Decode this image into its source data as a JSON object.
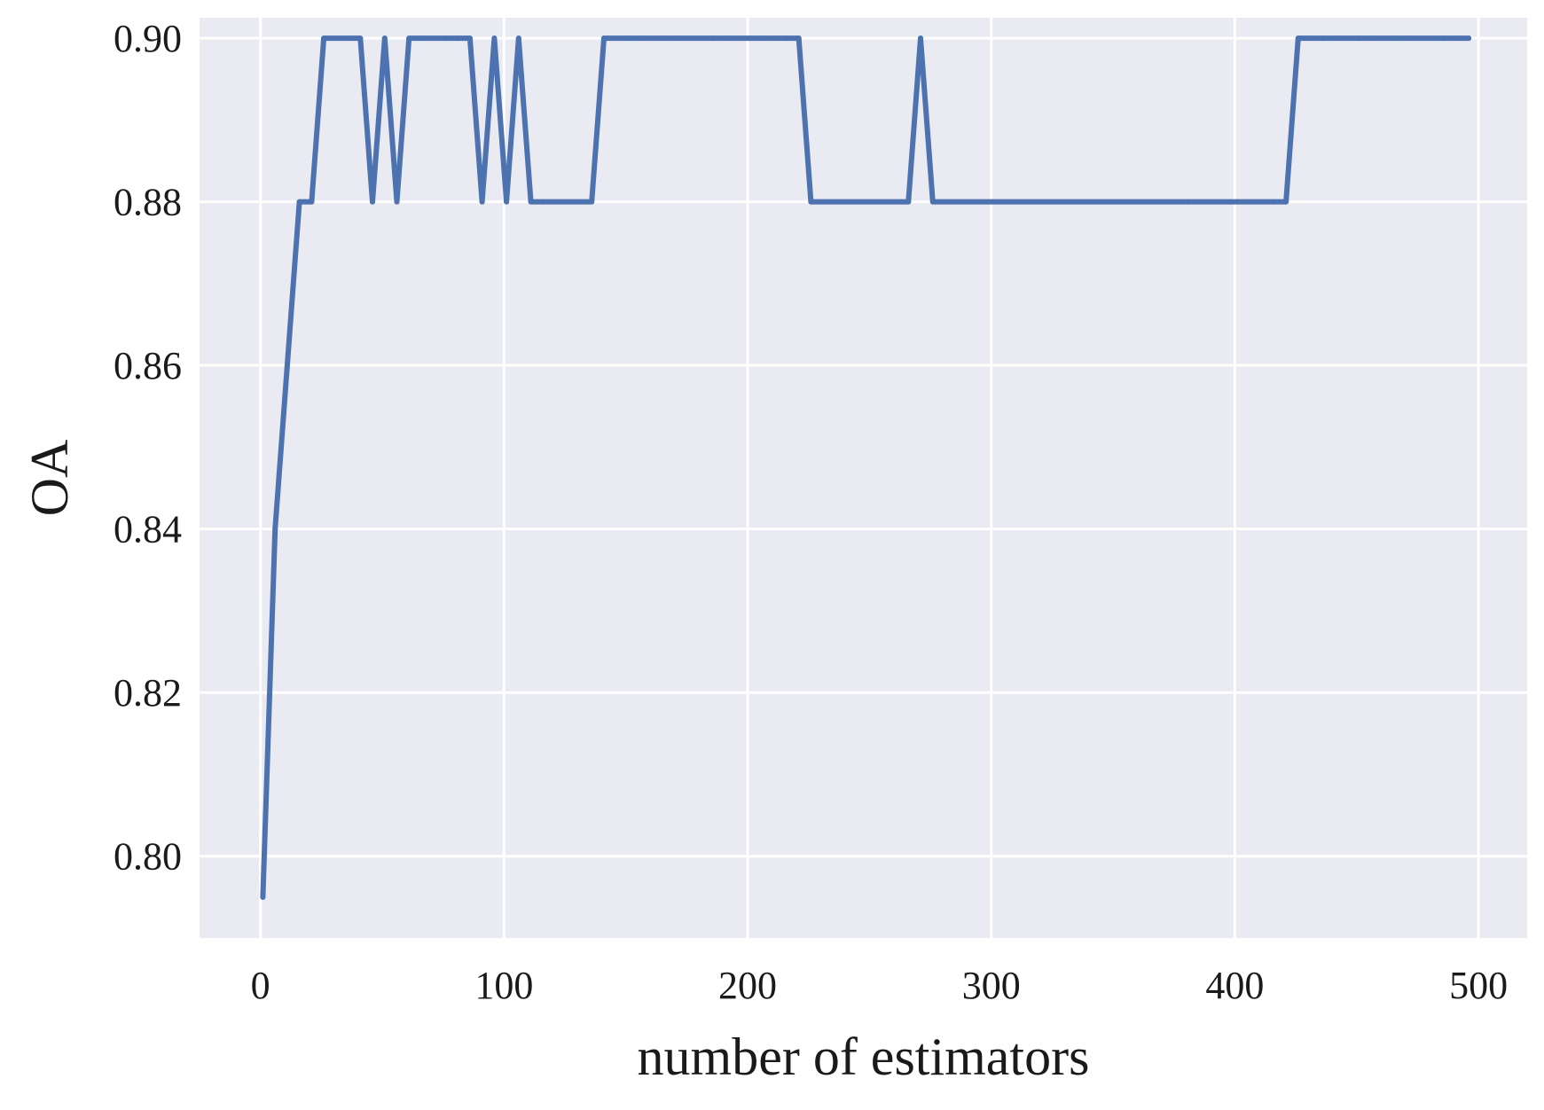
{
  "chart_data": {
    "type": "line",
    "title": "",
    "xlabel": "number of estimators",
    "ylabel": "OA",
    "xlim": [
      -25,
      520
    ],
    "ylim": [
      0.79,
      0.9025
    ],
    "xticks": [
      0,
      100,
      200,
      300,
      400,
      500
    ],
    "xtick_labels": [
      "0",
      "100",
      "200",
      "300",
      "400",
      "500"
    ],
    "yticks": [
      0.8,
      0.82,
      0.84,
      0.86,
      0.88,
      0.9
    ],
    "ytick_labels": [
      "0.80",
      "0.82",
      "0.84",
      "0.86",
      "0.88",
      "0.90"
    ],
    "grid": true,
    "colors": {
      "plot_background": "#eaeaf2",
      "grid": "#ffffff",
      "line": "#4c72b0"
    },
    "series": [
      {
        "x": [
          1,
          6,
          11,
          16,
          21,
          26,
          31,
          36,
          41,
          46,
          51,
          56,
          61,
          66,
          71,
          76,
          81,
          86,
          91,
          96,
          101,
          106,
          111,
          116,
          121,
          126,
          131,
          136,
          141,
          146,
          151,
          156,
          161,
          166,
          171,
          176,
          181,
          186,
          191,
          196,
          201,
          206,
          211,
          216,
          221,
          226,
          231,
          236,
          241,
          246,
          251,
          256,
          261,
          266,
          271,
          276,
          281,
          286,
          291,
          296,
          301,
          306,
          311,
          316,
          321,
          326,
          331,
          336,
          341,
          346,
          351,
          356,
          361,
          366,
          371,
          376,
          381,
          386,
          391,
          396,
          401,
          406,
          411,
          416,
          421,
          426,
          431,
          436,
          441,
          446,
          451,
          456,
          461,
          466,
          471,
          476,
          481,
          486,
          491,
          496
        ],
        "values": [
          0.795,
          0.84,
          0.86,
          0.88,
          0.88,
          0.9,
          0.9,
          0.9,
          0.9,
          0.88,
          0.9,
          0.88,
          0.9,
          0.9,
          0.9,
          0.9,
          0.9,
          0.9,
          0.88,
          0.9,
          0.88,
          0.9,
          0.88,
          0.88,
          0.88,
          0.88,
          0.88,
          0.88,
          0.9,
          0.9,
          0.9,
          0.9,
          0.9,
          0.9,
          0.9,
          0.9,
          0.9,
          0.9,
          0.9,
          0.9,
          0.9,
          0.9,
          0.9,
          0.9,
          0.9,
          0.88,
          0.88,
          0.88,
          0.88,
          0.88,
          0.88,
          0.88,
          0.88,
          0.88,
          0.9,
          0.88,
          0.88,
          0.88,
          0.88,
          0.88,
          0.88,
          0.88,
          0.88,
          0.88,
          0.88,
          0.88,
          0.88,
          0.88,
          0.88,
          0.88,
          0.88,
          0.88,
          0.88,
          0.88,
          0.88,
          0.88,
          0.88,
          0.88,
          0.88,
          0.88,
          0.88,
          0.88,
          0.88,
          0.88,
          0.88,
          0.9,
          0.9,
          0.9,
          0.9,
          0.9,
          0.9,
          0.9,
          0.9,
          0.9,
          0.9,
          0.9,
          0.9,
          0.9,
          0.9,
          0.9
        ]
      }
    ]
  }
}
